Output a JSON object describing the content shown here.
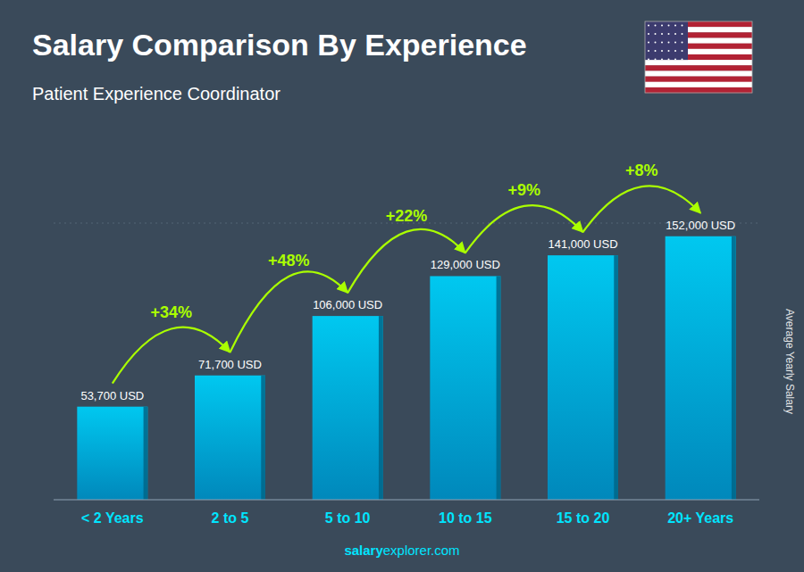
{
  "chart_data": {
    "type": "bar",
    "title": "Salary Comparison By Experience",
    "subtitle": "Patient Experience Coordinator",
    "y_label": "Average Yearly Salary",
    "categories": [
      "< 2 Years",
      "2 to 5",
      "5 to 10",
      "10 to 15",
      "15 to 20",
      "20+ Years"
    ],
    "values": [
      53700,
      71700,
      106000,
      129000,
      141000,
      152000
    ],
    "value_labels": [
      "53,700 USD",
      "71,700 USD",
      "106,000 USD",
      "129,000 USD",
      "141,000 USD",
      "152,000 USD"
    ],
    "data_labels": true,
    "color": "#00c8f0",
    "ylim": [
      0,
      159600
    ],
    "yticks": [],
    "tick_labels": "x",
    "grid": false,
    "annotations": [
      {
        "value": 34,
        "label": "+34%"
      },
      {
        "value": 48,
        "label": "+48%"
      },
      {
        "value": 22,
        "label": "+22%"
      },
      {
        "value": 9,
        "label": "+9%"
      },
      {
        "value": 8,
        "label": "+8%"
      }
    ],
    "watermark": [
      "salary",
      "explorer.com"
    ]
  }
}
